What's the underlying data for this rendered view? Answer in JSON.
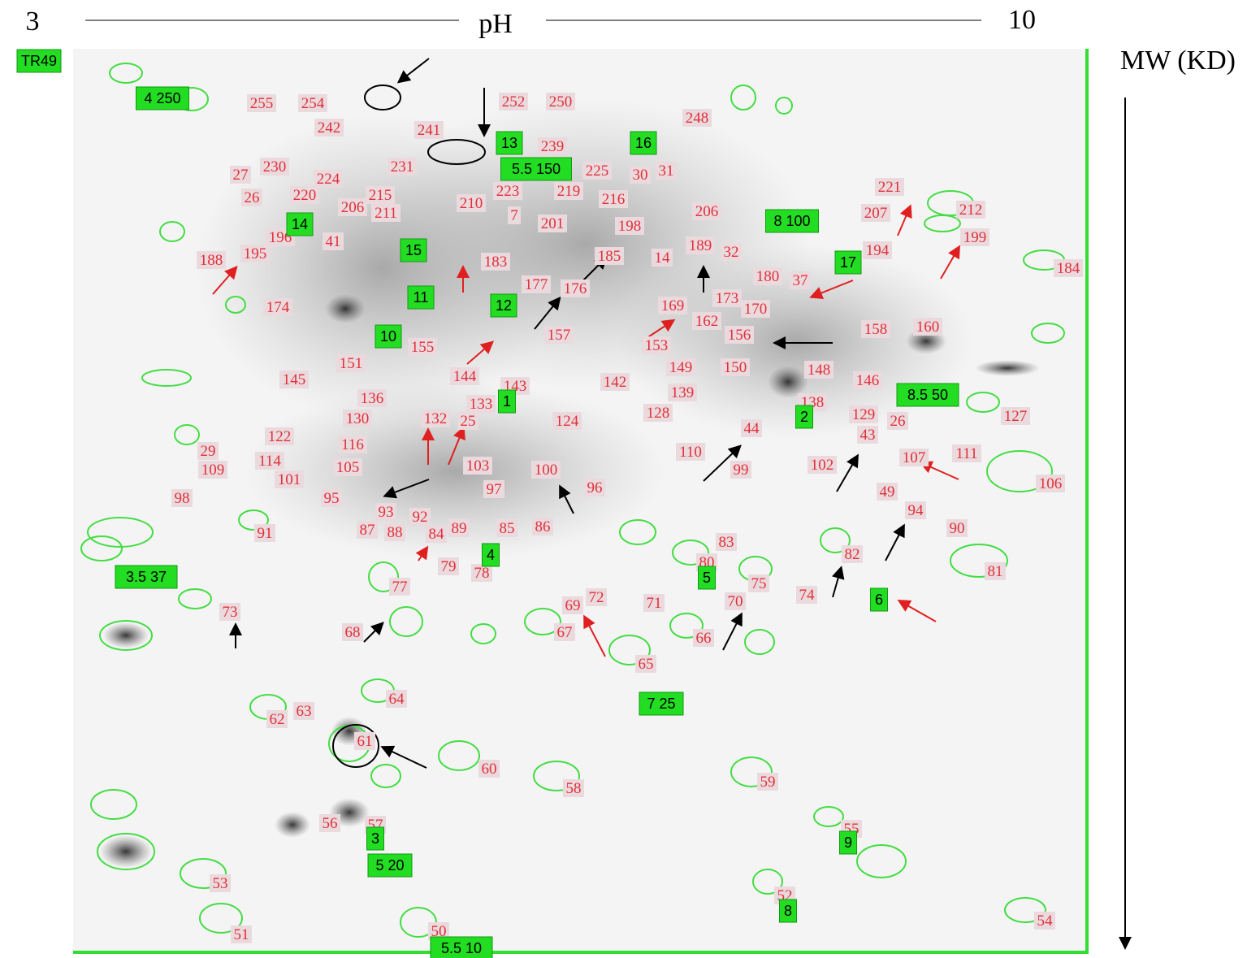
{
  "header": {
    "ph_start": "3",
    "ph_label": "pH",
    "ph_end": "10",
    "mw_label": "MW (KD)"
  },
  "markers": [
    "TR49",
    "4 250",
    "13",
    "5.5 150",
    "16",
    "8 100",
    "14",
    "15",
    "17",
    "11",
    "12",
    "10",
    "1",
    "8.5 50",
    "2",
    "4",
    "3.5 37",
    "5",
    "6",
    "7 25",
    "3",
    "5 20",
    "9",
    "8",
    "5.5 10"
  ],
  "spots": [
    "255",
    "254",
    "242",
    "252",
    "250",
    "248",
    "239",
    "241",
    "225",
    "30",
    "31",
    "27",
    "230",
    "224",
    "231",
    "220",
    "26",
    "206",
    "215",
    "211",
    "223",
    "219",
    "216",
    "210",
    "7",
    "201",
    "198",
    "206",
    "221",
    "207",
    "212",
    "199",
    "184",
    "188",
    "195",
    "196",
    "41",
    "183",
    "185",
    "14",
    "189",
    "32",
    "180",
    "37",
    "194",
    "174",
    "177",
    "176",
    "169",
    "173",
    "170",
    "160",
    "158",
    "157",
    "153",
    "156",
    "162",
    "155",
    "151",
    "145",
    "144",
    "143",
    "142",
    "149",
    "139",
    "150",
    "148",
    "146",
    "136",
    "133",
    "130",
    "132",
    "25",
    "124",
    "128",
    "138",
    "129",
    "26",
    "127",
    "122",
    "116",
    "44",
    "43",
    "110",
    "29",
    "109",
    "114",
    "101",
    "105",
    "103",
    "100",
    "97",
    "96",
    "99",
    "102",
    "107",
    "111",
    "106",
    "98",
    "95",
    "93",
    "92",
    "87",
    "88",
    "84",
    "89",
    "85",
    "86",
    "91",
    "49",
    "94",
    "90",
    "83",
    "82",
    "81",
    "79",
    "78",
    "75",
    "74",
    "80",
    "77",
    "73",
    "69",
    "72",
    "71",
    "70",
    "68",
    "67",
    "66",
    "65",
    "64",
    "63",
    "62",
    "61",
    "60",
    "58",
    "59",
    "56",
    "57",
    "55",
    "53",
    "52",
    "51",
    "54",
    "50"
  ]
}
